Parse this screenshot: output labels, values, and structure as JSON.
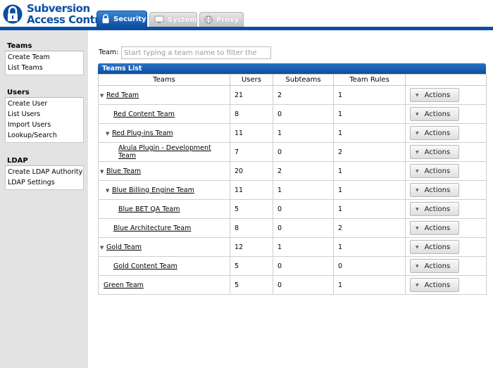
{
  "app": {
    "title_line1": "Subversion",
    "title_line2": "Access Control",
    "brand_color": "#0b4ea2"
  },
  "tabs": [
    {
      "label": "Security",
      "icon": "lock-icon",
      "active": true
    },
    {
      "label": "System",
      "icon": "monitor-icon",
      "active": false
    },
    {
      "label": "Proxy",
      "icon": "globe-icon",
      "active": false
    }
  ],
  "sidebar": {
    "teams": {
      "title": "Teams",
      "items": [
        "Create Team",
        "List Teams"
      ]
    },
    "users": {
      "title": "Users",
      "items": [
        "Create User",
        "List Users",
        "Import Users",
        "Lookup/Search"
      ]
    },
    "ldap": {
      "title": "LDAP",
      "items": [
        "Create LDAP Authority",
        "LDAP Settings"
      ]
    }
  },
  "filter": {
    "label": "Team:",
    "placeholder": "Start typing a team name to filter the"
  },
  "teams_list": {
    "title": "Teams List",
    "columns": [
      "Teams",
      "Users",
      "Subteams",
      "Team Rules",
      ""
    ],
    "action_label": "Actions",
    "rows": [
      {
        "name": "Red Team",
        "level": 0,
        "expandable": true,
        "users": "21",
        "subteams": "2",
        "rules": "1"
      },
      {
        "name": "Red Content Team",
        "level": 1,
        "expandable": false,
        "users": "8",
        "subteams": "0",
        "rules": "1"
      },
      {
        "name": "Red Plug-ins Team",
        "level": 1,
        "expandable": true,
        "users": "11",
        "subteams": "1",
        "rules": "1"
      },
      {
        "name": "Akula Plugin - Development Team",
        "level": 2,
        "expandable": false,
        "users": "7",
        "subteams": "0",
        "rules": "2"
      },
      {
        "name": "Blue Team",
        "level": 0,
        "expandable": true,
        "users": "20",
        "subteams": "2",
        "rules": "1"
      },
      {
        "name": "Blue Billing Engine Team",
        "level": 1,
        "expandable": true,
        "users": "11",
        "subteams": "1",
        "rules": "1"
      },
      {
        "name": "Blue BET QA Team",
        "level": 2,
        "expandable": false,
        "users": "5",
        "subteams": "0",
        "rules": "1"
      },
      {
        "name": "Blue Architecture Team",
        "level": 1,
        "expandable": false,
        "users": "8",
        "subteams": "0",
        "rules": "2"
      },
      {
        "name": "Gold Team",
        "level": 0,
        "expandable": true,
        "users": "12",
        "subteams": "1",
        "rules": "1"
      },
      {
        "name": "Gold Content Team",
        "level": 1,
        "expandable": false,
        "users": "5",
        "subteams": "0",
        "rules": "0"
      },
      {
        "name": "Green Team",
        "level": 0,
        "expandable": false,
        "users": "5",
        "subteams": "0",
        "rules": "1"
      }
    ]
  }
}
